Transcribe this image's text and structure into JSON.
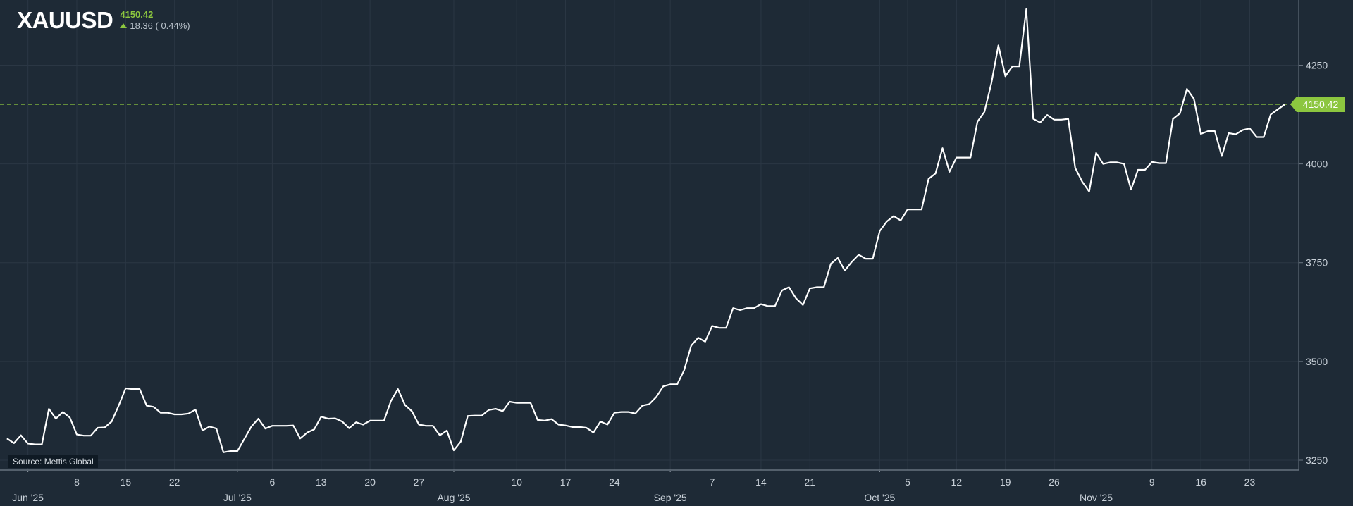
{
  "header": {
    "symbol": "XAUUSD",
    "last_price": "4150.42",
    "change": "18.36 ( 0.44%)"
  },
  "source_label": "Source: Mettis Global",
  "price_tag": "4150.42",
  "colors": {
    "background": "#1e2a36",
    "line": "#ffffff",
    "accent": "#8cc63f",
    "grid": "#2b3744",
    "axis_text": "#c8d0d8"
  },
  "chart_data": {
    "type": "line",
    "title": "",
    "xlabel": "",
    "ylabel": "",
    "ylim": [
      3225,
      4415
    ],
    "grid": true,
    "last_value": 4150.42,
    "y_ticks": [
      3250,
      3500,
      3750,
      4000,
      4250
    ],
    "x_ticks": [
      {
        "label": "Jun '25",
        "date": "2025-06-01",
        "month": true
      },
      {
        "label": "8",
        "date": "2025-06-08"
      },
      {
        "label": "15",
        "date": "2025-06-15"
      },
      {
        "label": "22",
        "date": "2025-06-22"
      },
      {
        "label": "Jul '25",
        "date": "2025-07-01",
        "month": true
      },
      {
        "label": "6",
        "date": "2025-07-06"
      },
      {
        "label": "13",
        "date": "2025-07-13"
      },
      {
        "label": "20",
        "date": "2025-07-20"
      },
      {
        "label": "27",
        "date": "2025-07-27"
      },
      {
        "label": "Aug '25",
        "date": "2025-08-01",
        "month": true
      },
      {
        "label": "10",
        "date": "2025-08-10"
      },
      {
        "label": "17",
        "date": "2025-08-17"
      },
      {
        "label": "24",
        "date": "2025-08-24"
      },
      {
        "label": "Sep '25",
        "date": "2025-09-01",
        "month": true
      },
      {
        "label": "7",
        "date": "2025-09-07"
      },
      {
        "label": "14",
        "date": "2025-09-14"
      },
      {
        "label": "21",
        "date": "2025-09-21"
      },
      {
        "label": "Oct '25",
        "date": "2025-10-01",
        "month": true
      },
      {
        "label": "5",
        "date": "2025-10-05"
      },
      {
        "label": "12",
        "date": "2025-10-12"
      },
      {
        "label": "19",
        "date": "2025-10-19"
      },
      {
        "label": "26",
        "date": "2025-10-26"
      },
      {
        "label": "Nov '25",
        "date": "2025-11-01",
        "month": true
      },
      {
        "label": "9",
        "date": "2025-11-09"
      },
      {
        "label": "16",
        "date": "2025-11-16"
      },
      {
        "label": "23",
        "date": "2025-11-23"
      }
    ],
    "series": [
      {
        "points": [
          [
            "2025-05-29",
            3305
          ],
          [
            "2025-05-30",
            3293
          ],
          [
            "2025-05-31",
            3313
          ],
          [
            "2025-06-01",
            3292
          ],
          [
            "2025-06-02",
            3290
          ],
          [
            "2025-06-03",
            3290
          ],
          [
            "2025-06-04",
            3380
          ],
          [
            "2025-06-05",
            3355
          ],
          [
            "2025-06-06",
            3372
          ],
          [
            "2025-06-07",
            3358
          ],
          [
            "2025-06-08",
            3315
          ],
          [
            "2025-06-09",
            3312
          ],
          [
            "2025-06-10",
            3312
          ],
          [
            "2025-06-11",
            3332
          ],
          [
            "2025-06-12",
            3333
          ],
          [
            "2025-06-13",
            3348
          ],
          [
            "2025-06-14",
            3388
          ],
          [
            "2025-06-15",
            3432
          ],
          [
            "2025-06-16",
            3430
          ],
          [
            "2025-06-17",
            3430
          ],
          [
            "2025-06-18",
            3388
          ],
          [
            "2025-06-19",
            3385
          ],
          [
            "2025-06-20",
            3370
          ],
          [
            "2025-06-21",
            3370
          ],
          [
            "2025-06-22",
            3366
          ],
          [
            "2025-06-23",
            3366
          ],
          [
            "2025-06-24",
            3368
          ],
          [
            "2025-06-25",
            3378
          ],
          [
            "2025-06-26",
            3325
          ],
          [
            "2025-06-27",
            3335
          ],
          [
            "2025-06-28",
            3330
          ],
          [
            "2025-06-29",
            3270
          ],
          [
            "2025-06-30",
            3273
          ],
          [
            "2025-07-01",
            3273
          ],
          [
            "2025-07-02",
            3304
          ],
          [
            "2025-07-03",
            3335
          ],
          [
            "2025-07-04",
            3355
          ],
          [
            "2025-07-05",
            3330
          ],
          [
            "2025-07-06",
            3337
          ],
          [
            "2025-07-07",
            3337
          ],
          [
            "2025-07-08",
            3337
          ],
          [
            "2025-07-09",
            3338
          ],
          [
            "2025-07-10",
            3305
          ],
          [
            "2025-07-11",
            3320
          ],
          [
            "2025-07-12",
            3328
          ],
          [
            "2025-07-13",
            3360
          ],
          [
            "2025-07-14",
            3355
          ],
          [
            "2025-07-15",
            3356
          ],
          [
            "2025-07-16",
            3348
          ],
          [
            "2025-07-17",
            3331
          ],
          [
            "2025-07-18",
            3346
          ],
          [
            "2025-07-19",
            3340
          ],
          [
            "2025-07-20",
            3350
          ],
          [
            "2025-07-21",
            3350
          ],
          [
            "2025-07-22",
            3350
          ],
          [
            "2025-07-23",
            3400
          ],
          [
            "2025-07-24",
            3430
          ],
          [
            "2025-07-25",
            3390
          ],
          [
            "2025-07-26",
            3374
          ],
          [
            "2025-07-27",
            3340
          ],
          [
            "2025-07-28",
            3337
          ],
          [
            "2025-07-29",
            3337
          ],
          [
            "2025-07-30",
            3313
          ],
          [
            "2025-07-31",
            3325
          ],
          [
            "2025-08-01",
            3275
          ],
          [
            "2025-08-02",
            3297
          ],
          [
            "2025-08-03",
            3362
          ],
          [
            "2025-08-04",
            3363
          ],
          [
            "2025-08-05",
            3363
          ],
          [
            "2025-08-06",
            3377
          ],
          [
            "2025-08-07",
            3380
          ],
          [
            "2025-08-08",
            3374
          ],
          [
            "2025-08-09",
            3398
          ],
          [
            "2025-08-10",
            3395
          ],
          [
            "2025-08-11",
            3395
          ],
          [
            "2025-08-12",
            3395
          ],
          [
            "2025-08-13",
            3352
          ],
          [
            "2025-08-14",
            3350
          ],
          [
            "2025-08-15",
            3354
          ],
          [
            "2025-08-16",
            3340
          ],
          [
            "2025-08-17",
            3338
          ],
          [
            "2025-08-18",
            3334
          ],
          [
            "2025-08-19",
            3334
          ],
          [
            "2025-08-20",
            3332
          ],
          [
            "2025-08-21",
            3320
          ],
          [
            "2025-08-22",
            3348
          ],
          [
            "2025-08-23",
            3340
          ],
          [
            "2025-08-24",
            3370
          ],
          [
            "2025-08-25",
            3372
          ],
          [
            "2025-08-26",
            3372
          ],
          [
            "2025-08-27",
            3368
          ],
          [
            "2025-08-28",
            3388
          ],
          [
            "2025-08-29",
            3392
          ],
          [
            "2025-08-30",
            3410
          ],
          [
            "2025-08-31",
            3437
          ],
          [
            "2025-09-01",
            3442
          ],
          [
            "2025-09-02",
            3442
          ],
          [
            "2025-09-03",
            3478
          ],
          [
            "2025-09-04",
            3540
          ],
          [
            "2025-09-05",
            3560
          ],
          [
            "2025-09-06",
            3550
          ],
          [
            "2025-09-07",
            3590
          ],
          [
            "2025-09-08",
            3585
          ],
          [
            "2025-09-09",
            3585
          ],
          [
            "2025-09-10",
            3635
          ],
          [
            "2025-09-11",
            3630
          ],
          [
            "2025-09-12",
            3635
          ],
          [
            "2025-09-13",
            3635
          ],
          [
            "2025-09-14",
            3645
          ],
          [
            "2025-09-15",
            3640
          ],
          [
            "2025-09-16",
            3640
          ],
          [
            "2025-09-17",
            3680
          ],
          [
            "2025-09-18",
            3688
          ],
          [
            "2025-09-19",
            3660
          ],
          [
            "2025-09-20",
            3643
          ],
          [
            "2025-09-21",
            3685
          ],
          [
            "2025-09-22",
            3688
          ],
          [
            "2025-09-23",
            3688
          ],
          [
            "2025-09-24",
            3747
          ],
          [
            "2025-09-25",
            3762
          ],
          [
            "2025-09-26",
            3730
          ],
          [
            "2025-09-27",
            3752
          ],
          [
            "2025-09-28",
            3770
          ],
          [
            "2025-09-29",
            3760
          ],
          [
            "2025-09-30",
            3760
          ],
          [
            "2025-10-01",
            3830
          ],
          [
            "2025-10-02",
            3854
          ],
          [
            "2025-10-03",
            3868
          ],
          [
            "2025-10-04",
            3857
          ],
          [
            "2025-10-05",
            3885
          ],
          [
            "2025-10-06",
            3885
          ],
          [
            "2025-10-07",
            3885
          ],
          [
            "2025-10-08",
            3962
          ],
          [
            "2025-10-09",
            3976
          ],
          [
            "2025-10-10",
            4040
          ],
          [
            "2025-10-11",
            3980
          ],
          [
            "2025-10-12",
            4016
          ],
          [
            "2025-10-13",
            4016
          ],
          [
            "2025-10-14",
            4016
          ],
          [
            "2025-10-15",
            4107
          ],
          [
            "2025-10-16",
            4132
          ],
          [
            "2025-10-17",
            4205
          ],
          [
            "2025-10-18",
            4300
          ],
          [
            "2025-10-19",
            4222
          ],
          [
            "2025-10-20",
            4247
          ],
          [
            "2025-10-21",
            4247
          ],
          [
            "2025-10-22",
            4392
          ],
          [
            "2025-10-23",
            4114
          ],
          [
            "2025-10-24",
            4105
          ],
          [
            "2025-10-25",
            4124
          ],
          [
            "2025-10-26",
            4112
          ],
          [
            "2025-10-27",
            4112
          ],
          [
            "2025-10-28",
            4114
          ],
          [
            "2025-10-29",
            3990
          ],
          [
            "2025-10-30",
            3955
          ],
          [
            "2025-10-31",
            3930
          ],
          [
            "2025-11-01",
            4028
          ],
          [
            "2025-11-02",
            4000
          ],
          [
            "2025-11-03",
            4004
          ],
          [
            "2025-11-04",
            4004
          ],
          [
            "2025-11-05",
            4000
          ],
          [
            "2025-11-06",
            3935
          ],
          [
            "2025-11-07",
            3985
          ],
          [
            "2025-11-08",
            3985
          ],
          [
            "2025-11-09",
            4005
          ],
          [
            "2025-11-10",
            4002
          ],
          [
            "2025-11-11",
            4002
          ],
          [
            "2025-11-12",
            4114
          ],
          [
            "2025-11-13",
            4128
          ],
          [
            "2025-11-14",
            4190
          ],
          [
            "2025-11-15",
            4165
          ],
          [
            "2025-11-16",
            4076
          ],
          [
            "2025-11-17",
            4083
          ],
          [
            "2025-11-18",
            4083
          ],
          [
            "2025-11-19",
            4020
          ],
          [
            "2025-11-20",
            4078
          ],
          [
            "2025-11-21",
            4075
          ],
          [
            "2025-11-22",
            4086
          ],
          [
            "2025-11-23",
            4090
          ],
          [
            "2025-11-24",
            4068
          ],
          [
            "2025-11-25",
            4068
          ],
          [
            "2025-11-26",
            4125
          ],
          [
            "2025-11-27",
            4138
          ],
          [
            "2025-11-28",
            4150.42
          ]
        ]
      }
    ]
  }
}
